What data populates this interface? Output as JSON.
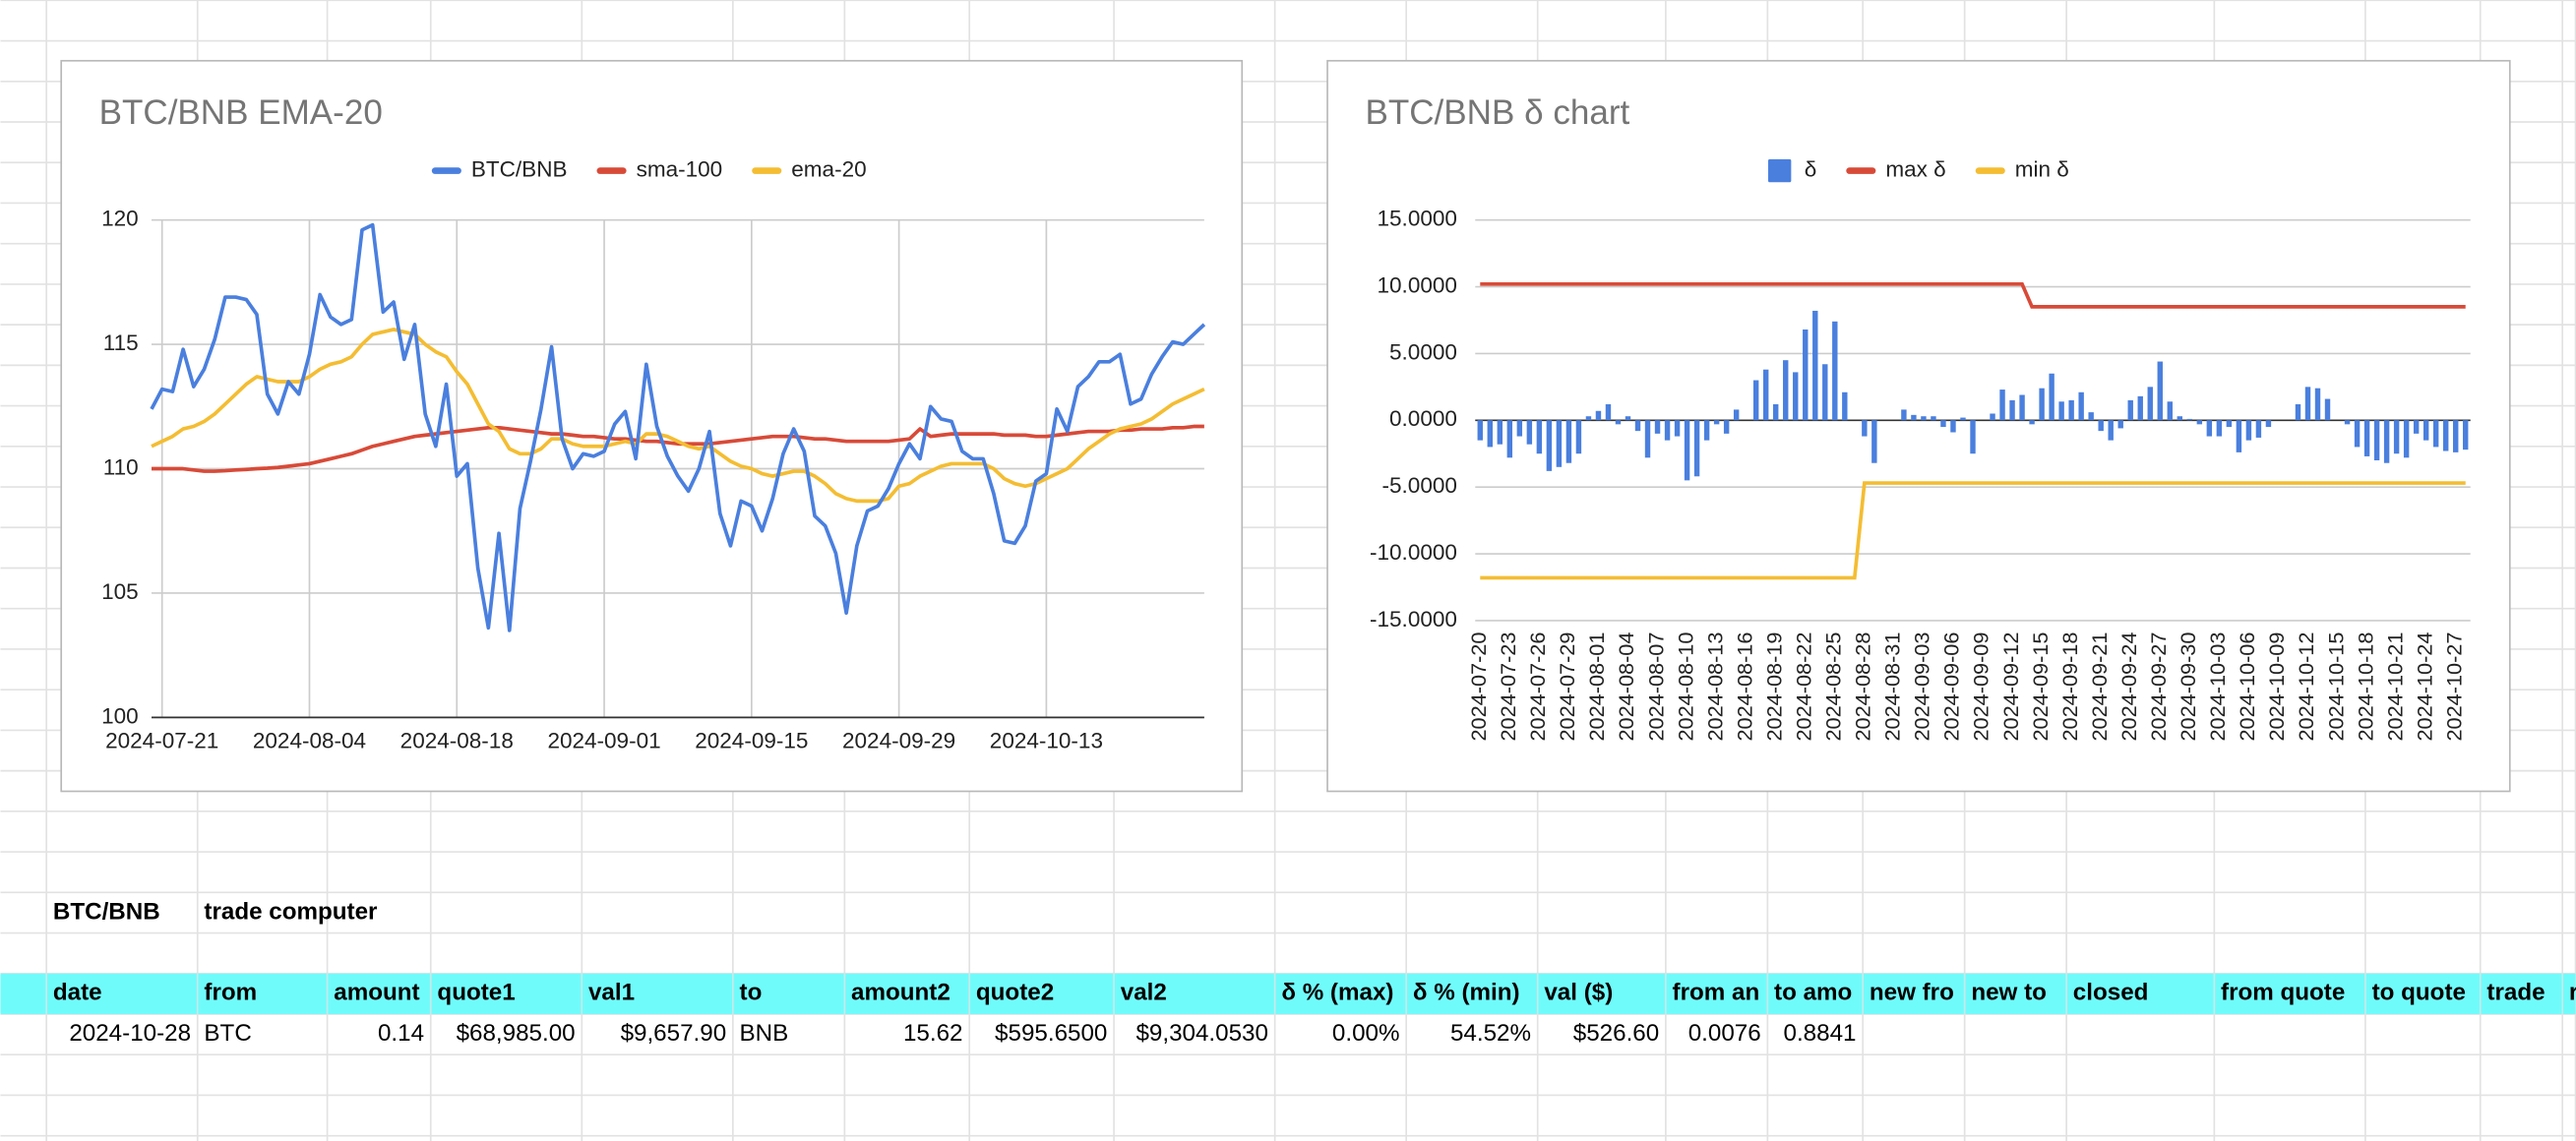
{
  "chart_data": [
    {
      "type": "line",
      "title": "BTC/BNB EMA-20",
      "x": [
        "2024-07-20",
        "2024-07-21",
        "2024-07-22",
        "2024-07-23",
        "2024-07-24",
        "2024-07-25",
        "2024-07-26",
        "2024-07-27",
        "2024-07-28",
        "2024-07-29",
        "2024-07-30",
        "2024-07-31",
        "2024-08-01",
        "2024-08-02",
        "2024-08-03",
        "2024-08-04",
        "2024-08-05",
        "2024-08-06",
        "2024-08-07",
        "2024-08-08",
        "2024-08-09",
        "2024-08-10",
        "2024-08-11",
        "2024-08-12",
        "2024-08-13",
        "2024-08-14",
        "2024-08-15",
        "2024-08-16",
        "2024-08-17",
        "2024-08-18",
        "2024-08-19",
        "2024-08-20",
        "2024-08-21",
        "2024-08-22",
        "2024-08-23",
        "2024-08-24",
        "2024-08-25",
        "2024-08-26",
        "2024-08-27",
        "2024-08-28",
        "2024-08-29",
        "2024-08-30",
        "2024-08-31",
        "2024-09-01",
        "2024-09-02",
        "2024-09-03",
        "2024-09-04",
        "2024-09-05",
        "2024-09-06",
        "2024-09-07",
        "2024-09-08",
        "2024-09-09",
        "2024-09-10",
        "2024-09-11",
        "2024-09-12",
        "2024-09-13",
        "2024-09-14",
        "2024-09-15",
        "2024-09-16",
        "2024-09-17",
        "2024-09-18",
        "2024-09-19",
        "2024-09-20",
        "2024-09-21",
        "2024-09-22",
        "2024-09-23",
        "2024-09-24",
        "2024-09-25",
        "2024-09-26",
        "2024-09-27",
        "2024-09-28",
        "2024-09-29",
        "2024-09-30",
        "2024-10-01",
        "2024-10-02",
        "2024-10-03",
        "2024-10-04",
        "2024-10-05",
        "2024-10-06",
        "2024-10-07",
        "2024-10-08",
        "2024-10-09",
        "2024-10-10",
        "2024-10-11",
        "2024-10-12",
        "2024-10-13",
        "2024-10-14",
        "2024-10-15",
        "2024-10-16",
        "2024-10-17",
        "2024-10-18",
        "2024-10-19",
        "2024-10-20",
        "2024-10-21",
        "2024-10-22",
        "2024-10-23",
        "2024-10-24",
        "2024-10-25",
        "2024-10-26",
        "2024-10-27",
        "2024-10-28"
      ],
      "series": [
        {
          "name": "BTC/BNB",
          "color": "#4a7fde",
          "values": [
            112.4,
            113.2,
            113.1,
            114.8,
            113.3,
            114.0,
            115.2,
            116.9,
            116.9,
            116.8,
            116.2,
            113.0,
            112.2,
            113.5,
            113.0,
            114.6,
            117.0,
            116.1,
            115.8,
            116.0,
            119.6,
            119.8,
            116.3,
            116.7,
            114.4,
            115.8,
            112.2,
            110.9,
            113.4,
            109.7,
            110.2,
            106.0,
            103.6,
            107.4,
            103.5,
            108.4,
            110.3,
            112.4,
            114.9,
            111.2,
            110.0,
            110.6,
            110.5,
            110.7,
            111.8,
            112.3,
            110.4,
            114.2,
            111.7,
            110.5,
            109.7,
            109.1,
            110.0,
            111.5,
            108.2,
            106.9,
            108.7,
            108.5,
            107.5,
            108.8,
            110.6,
            111.6,
            110.7,
            108.1,
            107.7,
            106.6,
            104.2,
            106.9,
            108.3,
            108.5,
            109.2,
            110.2,
            111.0,
            110.4,
            112.5,
            112.0,
            111.9,
            110.7,
            110.4,
            110.4,
            109.0,
            107.1,
            107.0,
            107.7,
            109.5,
            109.8,
            112.4,
            111.5,
            113.3,
            113.7,
            114.3,
            114.3,
            114.6,
            112.6,
            112.8,
            113.8,
            114.5,
            115.1,
            115.0,
            115.4,
            115.8
          ]
        },
        {
          "name": "sma-100",
          "color": "#d84a38",
          "values": [
            110.0,
            110.0,
            110.0,
            110.0,
            109.95,
            109.9,
            109.9,
            109.92,
            109.95,
            109.97,
            110.0,
            110.02,
            110.05,
            110.1,
            110.15,
            110.2,
            110.3,
            110.4,
            110.5,
            110.6,
            110.75,
            110.9,
            111.0,
            111.1,
            111.2,
            111.3,
            111.35,
            111.4,
            111.45,
            111.5,
            111.55,
            111.6,
            111.65,
            111.65,
            111.6,
            111.55,
            111.5,
            111.45,
            111.4,
            111.4,
            111.35,
            111.3,
            111.3,
            111.25,
            111.2,
            111.2,
            111.15,
            111.1,
            111.1,
            111.05,
            111.0,
            111.0,
            111.0,
            111.0,
            111.05,
            111.1,
            111.15,
            111.2,
            111.25,
            111.3,
            111.3,
            111.3,
            111.25,
            111.2,
            111.2,
            111.15,
            111.1,
            111.1,
            111.1,
            111.1,
            111.1,
            111.15,
            111.2,
            111.6,
            111.3,
            111.35,
            111.4,
            111.4,
            111.4,
            111.4,
            111.4,
            111.35,
            111.35,
            111.35,
            111.3,
            111.3,
            111.35,
            111.4,
            111.45,
            111.5,
            111.5,
            111.5,
            111.55,
            111.55,
            111.6,
            111.6,
            111.6,
            111.65,
            111.65,
            111.7,
            111.7
          ]
        },
        {
          "name": "ema-20",
          "color": "#f4bd32",
          "values": [
            110.9,
            111.1,
            111.3,
            111.6,
            111.7,
            111.9,
            112.2,
            112.6,
            113.0,
            113.4,
            113.7,
            113.6,
            113.5,
            113.5,
            113.5,
            113.7,
            114.0,
            114.2,
            114.3,
            114.5,
            115.0,
            115.4,
            115.5,
            115.6,
            115.5,
            115.4,
            115.0,
            114.7,
            114.5,
            113.9,
            113.4,
            112.6,
            111.8,
            111.5,
            110.8,
            110.6,
            110.6,
            110.8,
            111.2,
            111.2,
            111.0,
            110.9,
            110.9,
            110.9,
            111.0,
            111.1,
            111.0,
            111.4,
            111.4,
            111.3,
            111.1,
            110.9,
            110.8,
            110.9,
            110.6,
            110.3,
            110.1,
            110.0,
            109.8,
            109.7,
            109.8,
            109.9,
            109.9,
            109.7,
            109.4,
            109.0,
            108.8,
            108.7,
            108.7,
            108.7,
            108.8,
            109.3,
            109.4,
            109.7,
            109.9,
            110.1,
            110.2,
            110.2,
            110.2,
            110.2,
            110.0,
            109.6,
            109.4,
            109.3,
            109.4,
            109.6,
            109.8,
            110.0,
            110.4,
            110.8,
            111.1,
            111.4,
            111.6,
            111.7,
            111.8,
            112.0,
            112.3,
            112.6,
            112.8,
            113.0,
            113.2
          ]
        }
      ],
      "xlim": [
        "2024-07-20",
        "2024-10-28"
      ],
      "xticks": [
        "2024-07-21",
        "2024-08-04",
        "2024-08-18",
        "2024-09-01",
        "2024-09-15",
        "2024-09-29",
        "2024-10-13"
      ],
      "ylim": [
        100,
        120
      ],
      "yticks": [
        100,
        105,
        110,
        115,
        120
      ],
      "grid": true,
      "legend": "top"
    },
    {
      "type": "bar",
      "title": "BTC/BNB δ chart",
      "categories": [
        "2024-07-20",
        null,
        null,
        "2024-07-23",
        null,
        null,
        "2024-07-26",
        null,
        null,
        "2024-07-29",
        null,
        null,
        "2024-08-01",
        null,
        null,
        "2024-08-04",
        null,
        null,
        "2024-08-07",
        null,
        null,
        "2024-08-10",
        null,
        null,
        "2024-08-13",
        null,
        null,
        "2024-08-16",
        null,
        null,
        "2024-08-19",
        null,
        null,
        "2024-08-22",
        null,
        null,
        "2024-08-25",
        null,
        null,
        "2024-08-28",
        null,
        null,
        "2024-08-31",
        null,
        null,
        "2024-09-03",
        null,
        null,
        "2024-09-06",
        null,
        null,
        "2024-09-09",
        null,
        null,
        "2024-09-12",
        null,
        null,
        "2024-09-15",
        null,
        null,
        "2024-09-18",
        null,
        null,
        "2024-09-21",
        null,
        null,
        "2024-09-24",
        null,
        null,
        "2024-09-27",
        null,
        null,
        "2024-09-30",
        null,
        null,
        "2024-10-03",
        null,
        null,
        "2024-10-06",
        null,
        null,
        "2024-10-09",
        null,
        null,
        "2024-10-12",
        null,
        null,
        "2024-10-15",
        null,
        null,
        "2024-10-18",
        null,
        null,
        "2024-10-21",
        null,
        null,
        "2024-10-24",
        null,
        null,
        "2024-10-27",
        null
      ],
      "series": [
        {
          "name": "δ",
          "color": "#4a7fde",
          "type": "bar",
          "values": [
            -1.5,
            -2,
            -1.8,
            -2.8,
            -1.2,
            -1.8,
            -2.5,
            -3.8,
            -3.5,
            -3.2,
            -2.5,
            0.3,
            0.7,
            1.2,
            -0.3,
            0.3,
            -0.8,
            -2.8,
            -1,
            -1.5,
            -1.2,
            -4.5,
            -4.2,
            -1.5,
            -0.3,
            -1,
            0.8,
            0,
            3,
            3.8,
            1.2,
            4.5,
            3.6,
            6.8,
            8.2,
            4.2,
            7.4,
            2.1,
            0,
            -1.2,
            -3.2,
            0,
            0,
            0.8,
            0.4,
            0.3,
            0.3,
            -0.5,
            -0.9,
            0.2,
            -2.5,
            0,
            0.5,
            2.3,
            1.5,
            1.9,
            -0.3,
            2.4,
            3.5,
            1.4,
            1.5,
            2.1,
            0.6,
            -0.8,
            -1.5,
            -0.6,
            1.5,
            1.8,
            2.5,
            4.4,
            1.4,
            0.3,
            0.1,
            -0.3,
            -1.2,
            -1.2,
            -0.5,
            -2.4,
            -1.5,
            -1.3,
            -0.5,
            0,
            0,
            1.2,
            2.5,
            2.4,
            1.6,
            0,
            -0.3,
            -2,
            -2.7,
            -3,
            -3.2,
            -2.5,
            -2.8,
            -1,
            -1.5,
            -2,
            -2.3,
            -2.4,
            -2.2
          ]
        },
        {
          "name": "max δ",
          "color": "#d84a38",
          "type": "line",
          "values": [
            10.2,
            10.2,
            10.2,
            10.2,
            10.2,
            10.2,
            10.2,
            10.2,
            10.2,
            10.2,
            10.2,
            10.2,
            10.2,
            10.2,
            10.2,
            10.2,
            10.2,
            10.2,
            10.2,
            10.2,
            10.2,
            10.2,
            10.2,
            10.2,
            10.2,
            10.2,
            10.2,
            10.2,
            10.2,
            10.2,
            10.2,
            10.2,
            10.2,
            10.2,
            10.2,
            10.2,
            10.2,
            10.2,
            10.2,
            10.2,
            10.2,
            10.2,
            10.2,
            10.2,
            10.2,
            10.2,
            10.2,
            10.2,
            10.2,
            10.2,
            10.2,
            10.2,
            10.2,
            10.2,
            10.2,
            10.2,
            8.5,
            8.5,
            8.5,
            8.5,
            8.5,
            8.5,
            8.5,
            8.5,
            8.5,
            8.5,
            8.5,
            8.5,
            8.5,
            8.5,
            8.5,
            8.5,
            8.5,
            8.5,
            8.5,
            8.5,
            8.5,
            8.5,
            8.5,
            8.5,
            8.5,
            8.5,
            8.5,
            8.5,
            8.5,
            8.5,
            8.5,
            8.5,
            8.5,
            8.5,
            8.5,
            8.5,
            8.5,
            8.5,
            8.5,
            8.5,
            8.5,
            8.5,
            8.5,
            8.5,
            8.5
          ]
        },
        {
          "name": "min δ",
          "color": "#f4bd32",
          "type": "line",
          "values": [
            -11.8,
            -11.8,
            -11.8,
            -11.8,
            -11.8,
            -11.8,
            -11.8,
            -11.8,
            -11.8,
            -11.8,
            -11.8,
            -11.8,
            -11.8,
            -11.8,
            -11.8,
            -11.8,
            -11.8,
            -11.8,
            -11.8,
            -11.8,
            -11.8,
            -11.8,
            -11.8,
            -11.8,
            -11.8,
            -11.8,
            -11.8,
            -11.8,
            -11.8,
            -11.8,
            -11.8,
            -11.8,
            -11.8,
            -11.8,
            -11.8,
            -11.8,
            -11.8,
            -11.8,
            -11.8,
            -4.7,
            -4.7,
            -4.7,
            -4.7,
            -4.7,
            -4.7,
            -4.7,
            -4.7,
            -4.7,
            -4.7,
            -4.7,
            -4.7,
            -4.7,
            -4.7,
            -4.7,
            -4.7,
            -4.7,
            -4.7,
            -4.7,
            -4.7,
            -4.7,
            -4.7,
            -4.7,
            -4.7,
            -4.7,
            -4.7,
            -4.7,
            -4.7,
            -4.7,
            -4.7,
            -4.7,
            -4.7,
            -4.7,
            -4.7,
            -4.7,
            -4.7,
            -4.7,
            -4.7,
            -4.7,
            -4.7,
            -4.7,
            -4.7,
            -4.7,
            -4.7,
            -4.7,
            -4.7,
            -4.7,
            -4.7,
            -4.7,
            -4.7,
            -4.7,
            -4.7,
            -4.7,
            -4.7,
            -4.7,
            -4.7,
            -4.7,
            -4.7,
            -4.7,
            -4.7,
            -4.7,
            -4.7
          ]
        }
      ],
      "ylim": [
        -15,
        15
      ],
      "yticks": [
        {
          "value": -15,
          "label": "-15.0000"
        },
        {
          "value": -10,
          "label": "-10.0000"
        },
        {
          "value": -5,
          "label": "-5.0000"
        },
        {
          "value": 0,
          "label": "0.0000"
        },
        {
          "value": 5,
          "label": "5.0000"
        },
        {
          "value": 10,
          "label": "10.0000"
        },
        {
          "value": 15,
          "label": "15.0000"
        }
      ],
      "grid": true,
      "legend": "top"
    }
  ],
  "sheet": {
    "title": "BTC/BNB",
    "subtitle": "trade computer",
    "columns": [
      "date",
      "from",
      "amount",
      "quote1",
      "val1",
      "to",
      "amount2",
      "quote2",
      "val2",
      "δ % (max)",
      "δ % (min)",
      "val ($)",
      "from an",
      "to amo",
      "new fro",
      "new to",
      "closed",
      "from quote",
      "to quote",
      "trade",
      "r"
    ],
    "rows": [
      [
        "2024-10-28",
        "BTC",
        "0.14",
        "$68,985.00",
        "$9,657.90",
        "BNB",
        "15.62",
        "$595.6500",
        "$9,304.0530",
        "0.00%",
        "54.52%",
        "$526.60",
        "0.0076",
        "0.8841"
      ]
    ]
  }
}
